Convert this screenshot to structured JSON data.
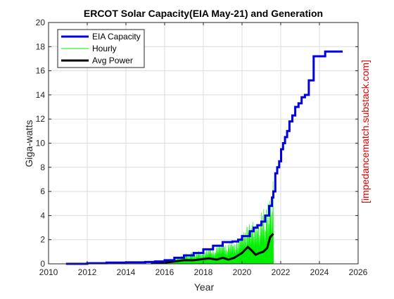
{
  "chart_data": {
    "type": "line",
    "title": "ERCOT Solar Capacity(EIA May-21) and Generation",
    "xlabel": "Year",
    "ylabel": "Giga-watts",
    "right_label": "[impedancematch.substack.com]",
    "xlim": [
      2010,
      2026
    ],
    "ylim": [
      0,
      20
    ],
    "xticks": [
      2010,
      2012,
      2014,
      2016,
      2018,
      2020,
      2022,
      2024,
      2026
    ],
    "yticks": [
      0,
      2,
      4,
      6,
      8,
      10,
      12,
      14,
      16,
      18,
      20
    ],
    "grid": true,
    "legend_position": "top-left",
    "legend": [
      "EIA Capacity",
      "Hourly",
      "Avg Power"
    ],
    "series": [
      {
        "name": "EIA Capacity",
        "color": "#0000e0",
        "style": "step",
        "x": [
          2010.9,
          2012.0,
          2013.0,
          2014.0,
          2015.0,
          2015.5,
          2016.0,
          2016.5,
          2017.0,
          2017.5,
          2018.0,
          2018.5,
          2019.0,
          2019.5,
          2019.8,
          2020.0,
          2020.4,
          2020.6,
          2020.8,
          2021.0,
          2021.2,
          2021.4,
          2021.55,
          2021.62,
          2021.72,
          2021.82,
          2021.92,
          2022.02,
          2022.12,
          2022.22,
          2022.33,
          2022.45,
          2022.6,
          2022.75,
          2022.92,
          2023.08,
          2023.25,
          2023.45,
          2023.7,
          2024.3,
          2025.2
        ],
        "y": [
          0.0,
          0.05,
          0.1,
          0.12,
          0.15,
          0.2,
          0.3,
          0.5,
          0.7,
          0.9,
          1.2,
          1.5,
          1.8,
          1.85,
          2.0,
          2.3,
          2.7,
          3.0,
          3.2,
          3.5,
          4.0,
          4.8,
          5.5,
          6.0,
          7.5,
          8.0,
          8.5,
          9.5,
          10.0,
          10.5,
          11.0,
          11.8,
          12.3,
          13.0,
          13.3,
          13.8,
          14.0,
          15.2,
          17.2,
          17.6,
          17.6
        ]
      },
      {
        "name": "Hourly",
        "color": "#00ee00",
        "style": "area",
        "x": [
          2015.8,
          2016.0,
          2016.5,
          2017.0,
          2017.5,
          2018.0,
          2018.5,
          2019.0,
          2019.5,
          2020.0,
          2020.3,
          2020.5,
          2020.7,
          2020.9,
          2021.1,
          2021.3,
          2021.5,
          2021.62
        ],
        "y": [
          0.3,
          0.35,
          0.5,
          0.8,
          1.0,
          1.3,
          1.5,
          1.8,
          1.8,
          2.5,
          3.3,
          3.7,
          3.2,
          4.0,
          4.5,
          5.3,
          6.3,
          7.0
        ]
      },
      {
        "name": "Avg Power",
        "color": "#000000",
        "style": "line",
        "x": [
          2015.3,
          2016.0,
          2016.5,
          2017.0,
          2017.5,
          2018.0,
          2018.3,
          2018.7,
          2019.0,
          2019.3,
          2019.6,
          2020.0,
          2020.3,
          2020.5,
          2020.7,
          2020.9,
          2021.1,
          2021.3,
          2021.45,
          2021.62
        ],
        "y": [
          0.05,
          0.1,
          0.2,
          0.3,
          0.3,
          0.4,
          0.45,
          0.35,
          0.5,
          0.35,
          0.5,
          0.9,
          1.4,
          1.1,
          0.75,
          0.9,
          1.0,
          1.3,
          2.2,
          2.5
        ]
      }
    ]
  }
}
